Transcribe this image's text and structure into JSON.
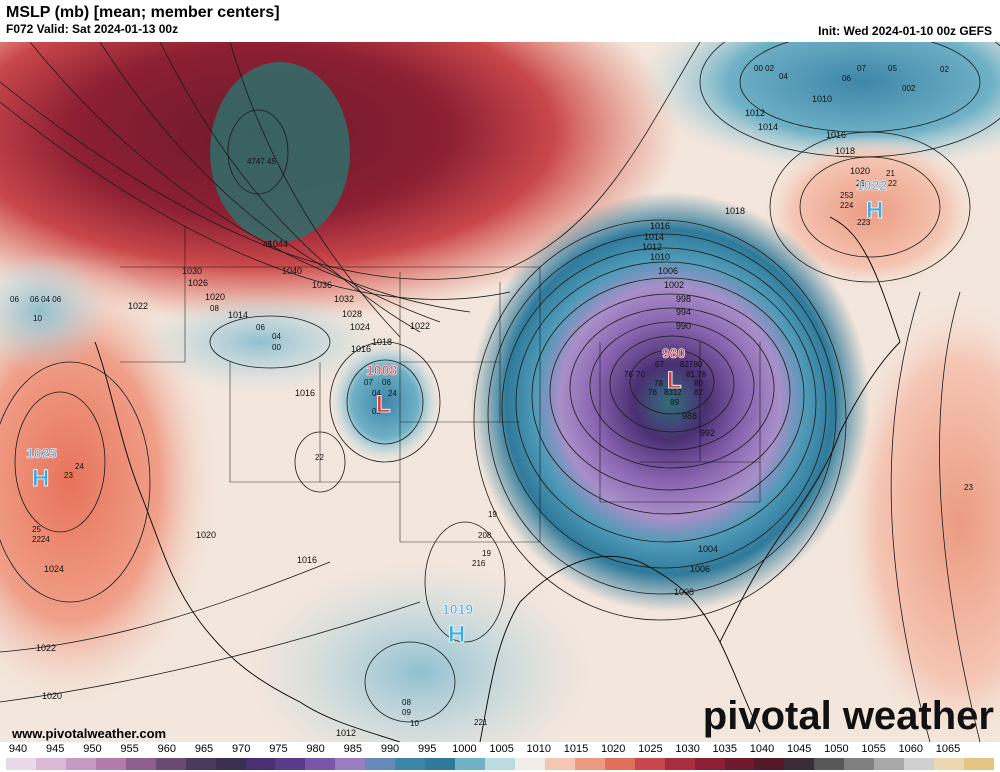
{
  "header": {
    "title": "MSLP (mb) [mean; member centers]",
    "valid": "F072 Valid: Sat 2024-01-13 00z",
    "init": "Init: Wed 2024-01-10 00z GEFS"
  },
  "footer": {
    "website": "www.pivotalweather.com",
    "brand": "pivotal weather"
  },
  "colors": {
    "deep_low": "#5a2a7a",
    "low": "#8a64b0",
    "mid_low": "#2f7a9a",
    "near_normal": "#f2e2d6",
    "high": "#e8735a",
    "very_high": "#8c1f33",
    "high_label": "#3aa9e6",
    "low_label": "#e23b3b"
  },
  "pressure_centers": [
    {
      "type": "L",
      "value": "980",
      "name": "ohio-valley-low"
    },
    {
      "type": "L",
      "value": "1008",
      "name": "rockies-low"
    },
    {
      "type": "H",
      "value": "1025",
      "name": "pacific-high"
    },
    {
      "type": "H",
      "value": "1019",
      "name": "mexico-high"
    },
    {
      "type": "H",
      "value": "1022",
      "name": "atlantic-canada-high"
    }
  ],
  "isobar_labels": [
    "1044",
    "1040",
    "1036",
    "1032",
    "1028",
    "1024",
    "1022",
    "1030",
    "1026",
    "1020",
    "1022",
    "1014",
    "1018",
    "1016",
    "1016",
    "1016",
    "1016",
    "1018",
    "1014",
    "1012",
    "1010",
    "1006",
    "1002",
    "998",
    "994",
    "990",
    "988",
    "992",
    "1004",
    "1006",
    "1008",
    "1012",
    "1010",
    "1014",
    "1016",
    "1018",
    "1020",
    "1024",
    "1022",
    "1020",
    "1020",
    "1012"
  ],
  "member_labels": [
    "00 02",
    "04",
    "06",
    "07",
    "05",
    "02",
    "002",
    "4747 45",
    "45",
    "06 04 06",
    "06",
    "10",
    "08",
    "06",
    "04",
    "00",
    "07",
    "06",
    "04",
    "24",
    "05",
    "22",
    "24",
    "23",
    "25",
    "2224",
    "67",
    "82780",
    "70",
    "81 76",
    "76",
    "78",
    "80",
    "76",
    "8312",
    "82",
    "89",
    "21",
    "25",
    "22",
    "253",
    "224",
    "223",
    "23",
    "19",
    "208",
    "19",
    "216",
    "08",
    "09",
    "10",
    "221",
    "22",
    "23"
  ],
  "colorbar": {
    "ticks": [
      "940",
      "945",
      "950",
      "955",
      "960",
      "965",
      "970",
      "975",
      "980",
      "985",
      "990",
      "995",
      "1000",
      "1005",
      "1010",
      "1015",
      "1020",
      "1025",
      "1030",
      "1035",
      "1040",
      "1045",
      "1050",
      "1055",
      "1060",
      "1065"
    ],
    "segments": [
      "#e8d8e8",
      "#d9b9d6",
      "#c79ac3",
      "#b27bab",
      "#8e5e8f",
      "#6a4a72",
      "#4c3a5e",
      "#3a2f50",
      "#4a2f72",
      "#5b3a8a",
      "#7a56a8",
      "#9a7cc2",
      "#6688bb",
      "#3e86a8",
      "#2f7a9a",
      "#6fb1c6",
      "#bcdce4",
      "#f2ece6",
      "#f5c6b4",
      "#ec9b82",
      "#e0705c",
      "#c9474a",
      "#a82d3e",
      "#8c1f33",
      "#6e1a2c",
      "#55182a",
      "#3c2c3a",
      "#585858",
      "#808080",
      "#a8a8a8",
      "#cfcfcf",
      "#ecd7b0",
      "#e6c483"
    ]
  }
}
